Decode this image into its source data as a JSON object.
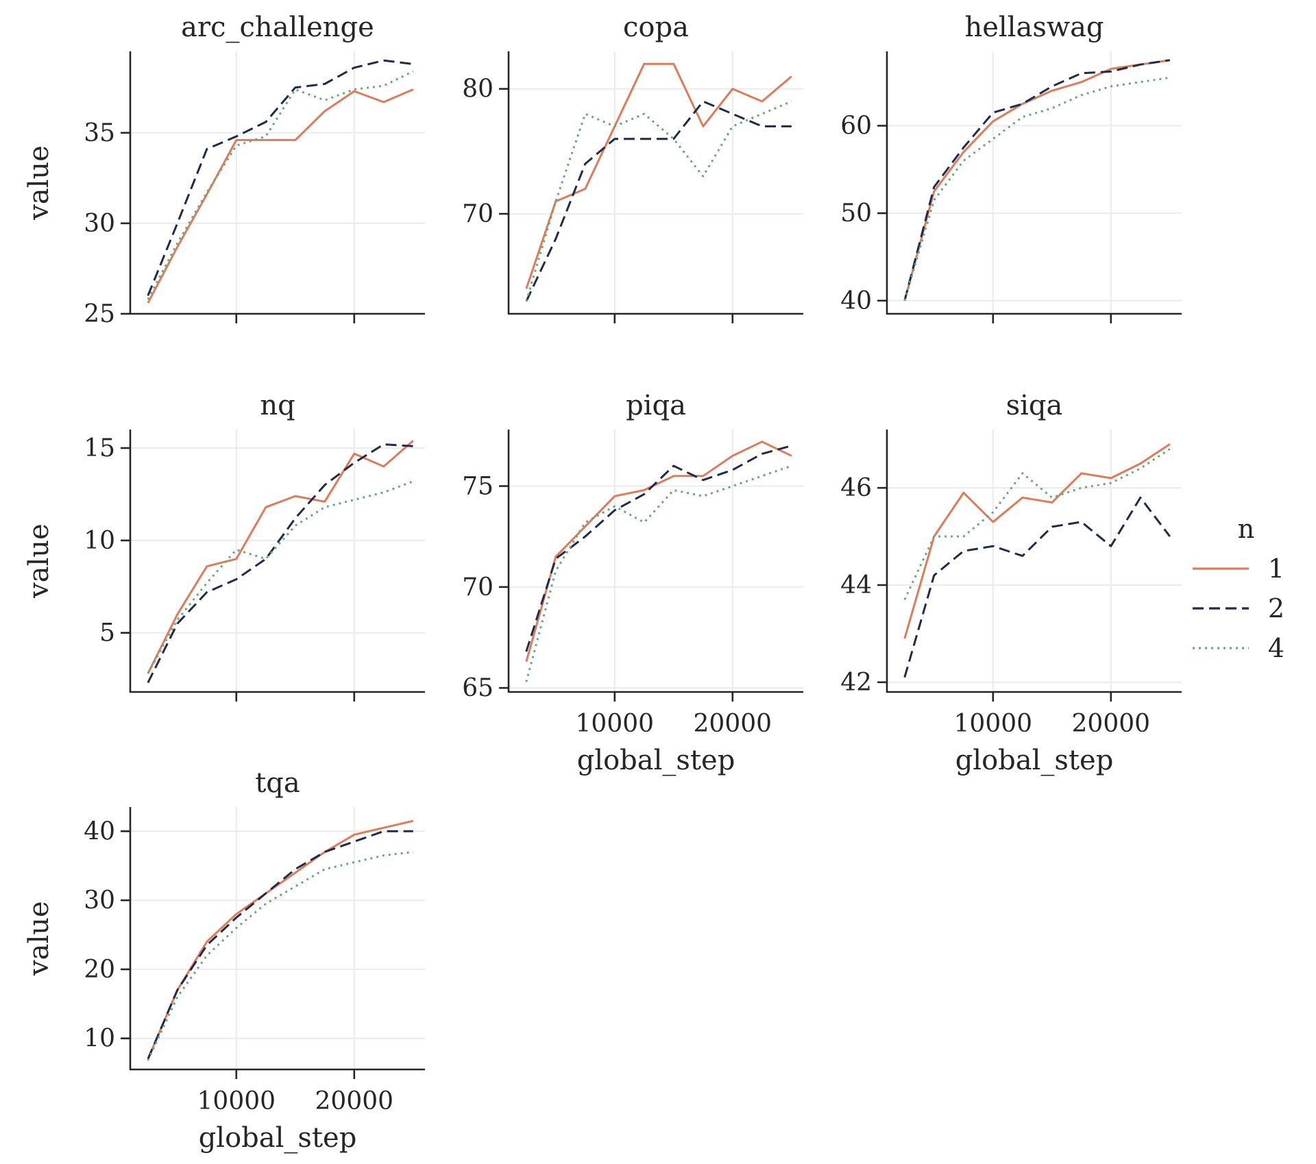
{
  "legend": {
    "title": "n",
    "entries": [
      {
        "label": "1",
        "color": "#e07b5a",
        "dash": "solid"
      },
      {
        "label": "2",
        "color": "#1f2a4d",
        "dash": "dashed"
      },
      {
        "label": "4",
        "color": "#6aa67f",
        "dash": "dotted"
      }
    ]
  },
  "chart_data": [
    {
      "type": "line",
      "title": "arc_challenge",
      "xlabel": "",
      "ylabel": "value",
      "xlim": [
        1000,
        26000
      ],
      "ylim": [
        25,
        39.5
      ],
      "xticks": [
        10000,
        20000
      ],
      "yticks": [
        25,
        30,
        35
      ],
      "show_xtick_labels": false,
      "x": [
        2500,
        5000,
        7500,
        10000,
        12500,
        15000,
        17500,
        20000,
        22500,
        25000
      ],
      "series": [
        {
          "name": "1",
          "values": [
            25.6,
            28.7,
            31.6,
            34.6,
            34.6,
            34.6,
            36.2,
            37.3,
            36.7,
            37.4
          ]
        },
        {
          "name": "2",
          "values": [
            26.0,
            30.0,
            34.1,
            34.8,
            35.6,
            37.5,
            37.7,
            38.6,
            39.0,
            38.8
          ]
        },
        {
          "name": "4",
          "values": [
            25.8,
            28.9,
            31.7,
            34.3,
            34.8,
            37.4,
            36.8,
            37.4,
            37.6,
            38.4
          ]
        }
      ]
    },
    {
      "type": "line",
      "title": "copa",
      "xlabel": "",
      "ylabel": "",
      "xlim": [
        1000,
        26000
      ],
      "ylim": [
        62,
        83
      ],
      "xticks": [
        10000,
        20000
      ],
      "yticks": [
        70,
        80
      ],
      "show_xtick_labels": false,
      "x": [
        2500,
        5000,
        7500,
        10000,
        12500,
        15000,
        17500,
        20000,
        22500,
        25000
      ],
      "series": [
        {
          "name": "1",
          "values": [
            64,
            71,
            72,
            77,
            82,
            82,
            77,
            80,
            79,
            81
          ]
        },
        {
          "name": "2",
          "values": [
            63,
            68,
            74,
            76,
            76,
            76,
            79,
            78,
            77,
            77
          ]
        },
        {
          "name": "4",
          "values": [
            63,
            71,
            78,
            77,
            78,
            76,
            73,
            77,
            78,
            79
          ]
        }
      ]
    },
    {
      "type": "line",
      "title": "hellaswag",
      "xlabel": "",
      "ylabel": "",
      "xlim": [
        1000,
        26000
      ],
      "ylim": [
        38.5,
        68.5
      ],
      "xticks": [
        10000,
        20000
      ],
      "yticks": [
        40,
        50,
        60
      ],
      "show_xtick_labels": false,
      "x": [
        2500,
        5000,
        7500,
        10000,
        12500,
        15000,
        17500,
        20000,
        22500,
        25000
      ],
      "series": [
        {
          "name": "1",
          "values": [
            40.0,
            52.5,
            57.0,
            60.5,
            62.5,
            64.0,
            65.0,
            66.5,
            67.0,
            67.5
          ]
        },
        {
          "name": "2",
          "values": [
            40.0,
            53.0,
            57.5,
            61.5,
            62.5,
            64.5,
            66.0,
            66.2,
            67.0,
            67.5
          ]
        },
        {
          "name": "4",
          "values": [
            40.0,
            51.5,
            56.0,
            58.5,
            61.0,
            62.0,
            63.5,
            64.5,
            65.0,
            65.5
          ]
        }
      ]
    },
    {
      "type": "line",
      "title": "nq",
      "xlabel": "",
      "ylabel": "value",
      "xlim": [
        1000,
        26000
      ],
      "ylim": [
        1.8,
        16
      ],
      "xticks": [
        10000,
        20000
      ],
      "yticks": [
        5,
        10,
        15
      ],
      "show_xtick_labels": false,
      "x": [
        2500,
        5000,
        7500,
        10000,
        12500,
        15000,
        17500,
        20000,
        22500,
        25000
      ],
      "series": [
        {
          "name": "1",
          "values": [
            2.8,
            6.0,
            8.6,
            9.0,
            11.8,
            12.4,
            12.1,
            14.7,
            14.0,
            15.4
          ]
        },
        {
          "name": "2",
          "values": [
            2.3,
            5.5,
            7.2,
            7.9,
            9.0,
            11.2,
            13.0,
            14.2,
            15.2,
            15.1
          ]
        },
        {
          "name": "4",
          "values": [
            2.8,
            5.7,
            7.7,
            9.5,
            9.0,
            10.8,
            11.8,
            12.2,
            12.6,
            13.2
          ]
        }
      ]
    },
    {
      "type": "line",
      "title": "piqa",
      "xlabel": "global_step",
      "ylabel": "",
      "xlim": [
        1000,
        26000
      ],
      "ylim": [
        64.8,
        77.8
      ],
      "xticks": [
        10000,
        20000
      ],
      "yticks": [
        65,
        70,
        75
      ],
      "show_xtick_labels": true,
      "x": [
        2500,
        5000,
        7500,
        10000,
        12500,
        15000,
        17500,
        20000,
        22500,
        25000
      ],
      "series": [
        {
          "name": "1",
          "values": [
            66.3,
            71.5,
            73.0,
            74.5,
            74.8,
            75.5,
            75.5,
            76.5,
            77.2,
            76.5
          ]
        },
        {
          "name": "2",
          "values": [
            66.8,
            71.4,
            72.5,
            73.8,
            74.6,
            76.0,
            75.3,
            75.8,
            76.6,
            77.0
          ]
        },
        {
          "name": "4",
          "values": [
            65.3,
            70.8,
            73.2,
            74.0,
            73.2,
            74.8,
            74.5,
            75.0,
            75.5,
            76.0
          ]
        }
      ]
    },
    {
      "type": "line",
      "title": "siqa",
      "xlabel": "global_step",
      "ylabel": "",
      "xlim": [
        1000,
        26000
      ],
      "ylim": [
        41.8,
        47.2
      ],
      "xticks": [
        10000,
        20000
      ],
      "yticks": [
        42,
        44,
        46
      ],
      "show_xtick_labels": true,
      "x": [
        2500,
        5000,
        7500,
        10000,
        12500,
        15000,
        17500,
        20000,
        22500,
        25000
      ],
      "series": [
        {
          "name": "1",
          "values": [
            42.9,
            45.0,
            45.9,
            45.3,
            45.8,
            45.7,
            46.3,
            46.2,
            46.5,
            46.9
          ]
        },
        {
          "name": "2",
          "values": [
            42.1,
            44.2,
            44.7,
            44.8,
            44.6,
            45.2,
            45.3,
            44.8,
            45.8,
            45.0
          ]
        },
        {
          "name": "4",
          "values": [
            43.7,
            45.0,
            45.0,
            45.5,
            46.3,
            45.8,
            46.0,
            46.1,
            46.4,
            46.8
          ]
        }
      ]
    },
    {
      "type": "line",
      "title": "tqa",
      "xlabel": "global_step",
      "ylabel": "value",
      "xlim": [
        1000,
        26000
      ],
      "ylim": [
        5.5,
        43.5
      ],
      "xticks": [
        10000,
        20000
      ],
      "yticks": [
        10,
        20,
        30,
        40
      ],
      "show_xtick_labels": true,
      "x": [
        2500,
        5000,
        7500,
        10000,
        12500,
        15000,
        17500,
        20000,
        22500,
        25000
      ],
      "series": [
        {
          "name": "1",
          "values": [
            7.0,
            17.0,
            24.0,
            28.0,
            31.0,
            34.0,
            37.0,
            39.5,
            40.5,
            41.5
          ]
        },
        {
          "name": "2",
          "values": [
            7.0,
            17.0,
            23.5,
            27.5,
            31.0,
            34.5,
            37.0,
            38.5,
            40.0,
            40.0
          ]
        },
        {
          "name": "4",
          "values": [
            6.8,
            16.0,
            22.0,
            26.0,
            29.5,
            32.0,
            34.5,
            35.5,
            36.5,
            37.0
          ]
        }
      ]
    }
  ]
}
